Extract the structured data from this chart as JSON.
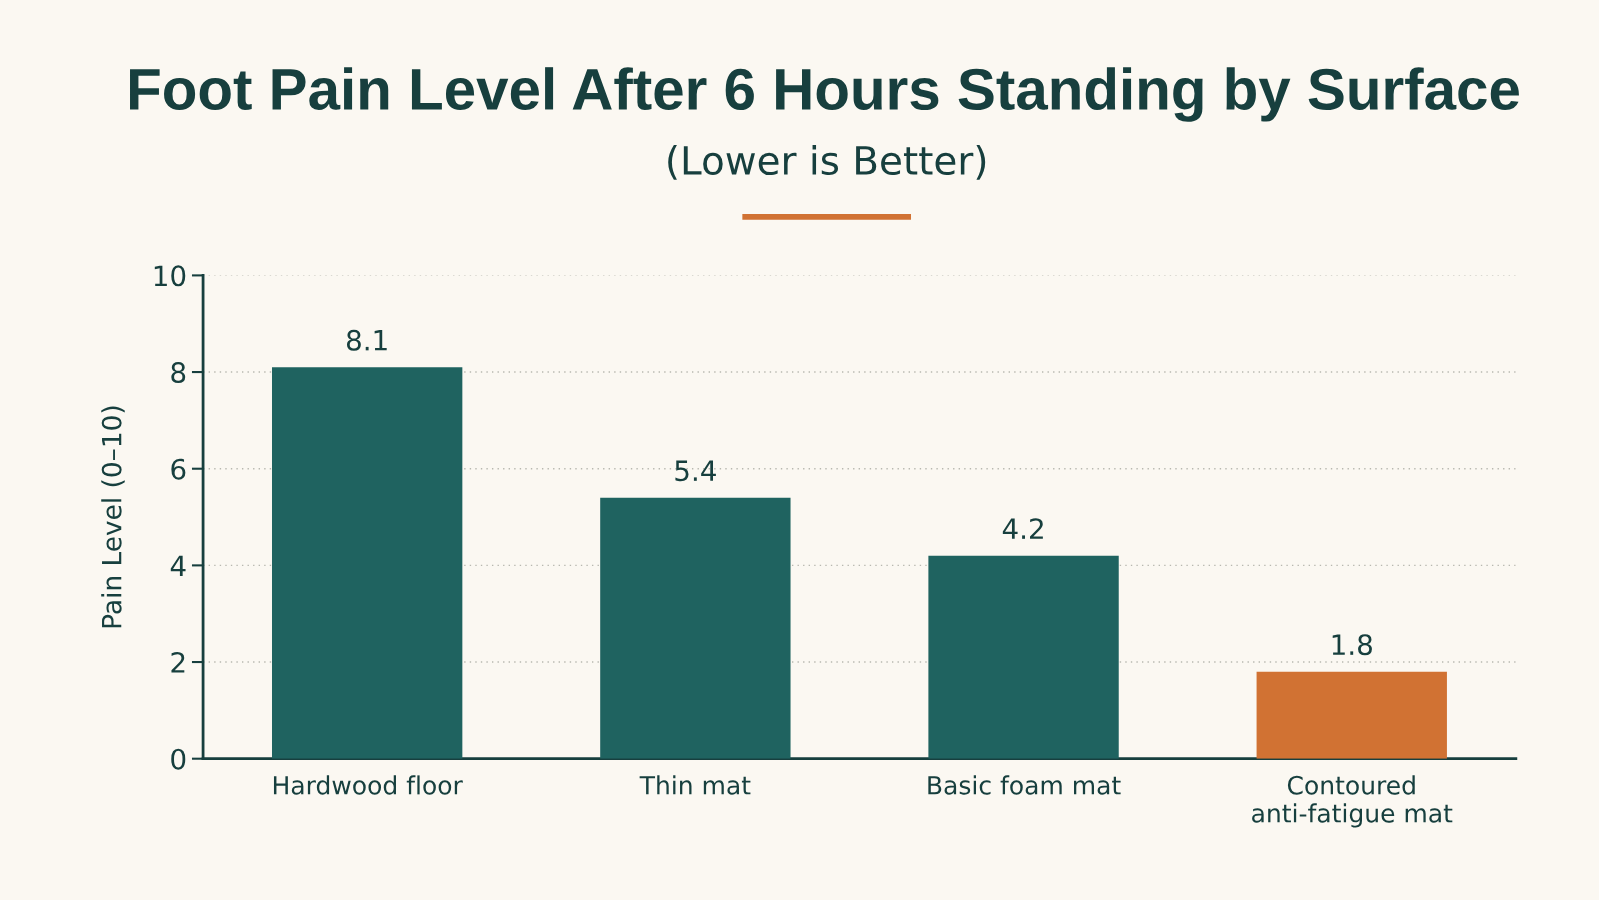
{
  "chart_data": {
    "type": "bar",
    "title": "Foot Pain Level After 6 Hours Standing by Surface",
    "subtitle": "(Lower is Better)",
    "ylabel": "Pain Level (0–10)",
    "categories": [
      "Hardwood floor",
      "Thin mat",
      "Basic foam mat",
      "Contoured\nanti-fatigue mat"
    ],
    "values": [
      8.1,
      5.4,
      4.2,
      1.8
    ],
    "colors": [
      "#1f6360",
      "#1f6360",
      "#1f6360",
      "#d17233"
    ],
    "ylim": [
      0,
      10
    ],
    "yticks": [
      0,
      2,
      4,
      6,
      8,
      10
    ],
    "grid": "y",
    "data_labels": true
  }
}
